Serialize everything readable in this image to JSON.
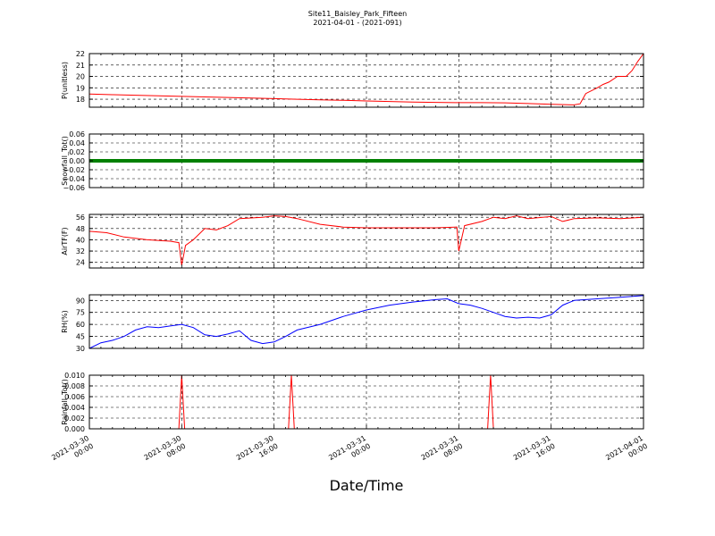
{
  "figure": {
    "title": "Site11_Baisley_Park_Fifteen",
    "subtitle": "2021-04-01 - (2021-091)",
    "xlabel": "Date/Time"
  },
  "chart_data": {
    "type": "line",
    "shared_x": {
      "range": [
        "2021-03-30 00:00",
        "2021-04-01 00:00"
      ],
      "tick_labels": [
        [
          "2021-03-30",
          "00:00"
        ],
        [
          "2021-03-30",
          "08:00"
        ],
        [
          "2021-03-30",
          "16:00"
        ],
        [
          "2021-03-31",
          "00:00"
        ],
        [
          "2021-03-31",
          "08:00"
        ],
        [
          "2021-03-31",
          "16:00"
        ],
        [
          "2021-04-01",
          "00:00"
        ]
      ]
    },
    "grid": true,
    "panels": [
      {
        "ylabel": "P(unitless)",
        "color": "#ff0000",
        "ylim": [
          17.3,
          22
        ],
        "yticks": [
          18,
          19,
          20,
          21,
          22
        ],
        "tick_labels": [
          "18",
          "19",
          "20",
          "21",
          "22"
        ],
        "points": [
          [
            "2021-03-30 00:00",
            18.45
          ],
          [
            "2021-03-30 02:00",
            18.4
          ],
          [
            "2021-03-30 04:00",
            18.35
          ],
          [
            "2021-03-30 06:00",
            18.3
          ],
          [
            "2021-03-30 08:00",
            18.25
          ],
          [
            "2021-03-30 10:00",
            18.2
          ],
          [
            "2021-03-30 12:00",
            18.15
          ],
          [
            "2021-03-30 14:00",
            18.1
          ],
          [
            "2021-03-30 16:00",
            18.05
          ],
          [
            "2021-03-30 18:00",
            18.0
          ],
          [
            "2021-03-30 20:00",
            17.95
          ],
          [
            "2021-03-30 22:00",
            17.9
          ],
          [
            "2021-03-31 00:00",
            17.85
          ],
          [
            "2021-03-31 02:00",
            17.8
          ],
          [
            "2021-03-31 04:00",
            17.75
          ],
          [
            "2021-03-31 06:00",
            17.72
          ],
          [
            "2021-03-31 08:00",
            17.7
          ],
          [
            "2021-03-31 10:00",
            17.7
          ],
          [
            "2021-03-31 12:00",
            17.68
          ],
          [
            "2021-03-31 14:00",
            17.62
          ],
          [
            "2021-03-31 16:00",
            17.55
          ],
          [
            "2021-03-31 18:00",
            17.5
          ],
          [
            "2021-03-31 18:30",
            17.6
          ],
          [
            "2021-03-31 19:00",
            18.5
          ],
          [
            "2021-03-31 20:00",
            19.0
          ],
          [
            "2021-03-31 20:30",
            19.3
          ],
          [
            "2021-03-31 21:00",
            19.5
          ],
          [
            "2021-03-31 21:45",
            20.0
          ],
          [
            "2021-03-31 22:30",
            20.0
          ],
          [
            "2021-03-31 23:00",
            20.5
          ],
          [
            "2021-03-31 23:30",
            21.3
          ],
          [
            "2021-04-01 00:00",
            22.0
          ]
        ]
      },
      {
        "ylabel": "Snowfall_Tot()",
        "color": "#008000",
        "ylim": [
          -0.06,
          0.06
        ],
        "yticks": [
          -0.06,
          -0.04,
          -0.02,
          0,
          0.02,
          0.04,
          0.06
        ],
        "tick_labels": [
          "−0.06",
          "−0.04",
          "−0.02",
          "0.00",
          "0.02",
          "0.04",
          "0.06"
        ],
        "points": [
          [
            "2021-03-30 00:00",
            0
          ],
          [
            "2021-04-01 00:00",
            0
          ]
        ]
      },
      {
        "ylabel": "AirTF(F)",
        "color": "#ff0000",
        "ylim": [
          20,
          58
        ],
        "yticks": [
          24,
          32,
          40,
          48,
          56
        ],
        "tick_labels": [
          "24",
          "32",
          "40",
          "48",
          "56"
        ],
        "points": [
          [
            "2021-03-30 00:00",
            46
          ],
          [
            "2021-03-30 01:30",
            45
          ],
          [
            "2021-03-30 03:00",
            42
          ],
          [
            "2021-03-30 05:00",
            40
          ],
          [
            "2021-03-30 07:00",
            39
          ],
          [
            "2021-03-30 07:45",
            38
          ],
          [
            "2021-03-30 08:00",
            22
          ],
          [
            "2021-03-30 08:20",
            36
          ],
          [
            "2021-03-30 09:00",
            40
          ],
          [
            "2021-03-30 10:00",
            48
          ],
          [
            "2021-03-30 11:00",
            47
          ],
          [
            "2021-03-30 12:00",
            50
          ],
          [
            "2021-03-30 13:00",
            55
          ],
          [
            "2021-03-30 15:00",
            56
          ],
          [
            "2021-03-30 16:00",
            57
          ],
          [
            "2021-03-30 17:00",
            56.5
          ],
          [
            "2021-03-30 18:00",
            55
          ],
          [
            "2021-03-30 20:00",
            51
          ],
          [
            "2021-03-30 22:00",
            49
          ],
          [
            "2021-03-31 00:00",
            48.5
          ],
          [
            "2021-03-31 02:00",
            48.5
          ],
          [
            "2021-03-31 04:00",
            48.5
          ],
          [
            "2021-03-31 06:00",
            48.5
          ],
          [
            "2021-03-31 07:50",
            49
          ],
          [
            "2021-03-31 08:00",
            32
          ],
          [
            "2021-03-31 08:30",
            50
          ],
          [
            "2021-03-31 10:00",
            53
          ],
          [
            "2021-03-31 11:00",
            56
          ],
          [
            "2021-03-31 12:00",
            55
          ],
          [
            "2021-03-31 13:00",
            57
          ],
          [
            "2021-03-31 14:00",
            55
          ],
          [
            "2021-03-31 16:00",
            56.5
          ],
          [
            "2021-03-31 17:00",
            53
          ],
          [
            "2021-03-31 18:00",
            55
          ],
          [
            "2021-03-31 20:00",
            55.5
          ],
          [
            "2021-03-31 22:00",
            55
          ],
          [
            "2021-04-01 00:00",
            56
          ]
        ]
      },
      {
        "ylabel": "RH(%)",
        "color": "#0000ff",
        "ylim": [
          30,
          97
        ],
        "yticks": [
          30,
          45,
          60,
          75,
          90
        ],
        "tick_labels": [
          "30",
          "45",
          "60",
          "75",
          "90"
        ],
        "points": [
          [
            "2021-03-30 00:00",
            30
          ],
          [
            "2021-03-30 01:00",
            37
          ],
          [
            "2021-03-30 02:00",
            40
          ],
          [
            "2021-03-30 03:00",
            45
          ],
          [
            "2021-03-30 04:00",
            53
          ],
          [
            "2021-03-30 05:00",
            57
          ],
          [
            "2021-03-30 06:00",
            56
          ],
          [
            "2021-03-30 07:00",
            58
          ],
          [
            "2021-03-30 08:00",
            60
          ],
          [
            "2021-03-30 09:00",
            56
          ],
          [
            "2021-03-30 10:00",
            47
          ],
          [
            "2021-03-30 11:00",
            45
          ],
          [
            "2021-03-30 12:00",
            48
          ],
          [
            "2021-03-30 13:00",
            52
          ],
          [
            "2021-03-30 14:00",
            40
          ],
          [
            "2021-03-30 15:00",
            36
          ],
          [
            "2021-03-30 16:00",
            38
          ],
          [
            "2021-03-30 17:00",
            45
          ],
          [
            "2021-03-30 18:00",
            53
          ],
          [
            "2021-03-30 20:00",
            60
          ],
          [
            "2021-03-30 22:00",
            70
          ],
          [
            "2021-03-31 00:00",
            78
          ],
          [
            "2021-03-31 02:00",
            84
          ],
          [
            "2021-03-31 04:00",
            88
          ],
          [
            "2021-03-31 06:00",
            91
          ],
          [
            "2021-03-31 07:00",
            92
          ],
          [
            "2021-03-31 08:00",
            86
          ],
          [
            "2021-03-31 09:00",
            84
          ],
          [
            "2021-03-31 10:00",
            80
          ],
          [
            "2021-03-31 11:00",
            75
          ],
          [
            "2021-03-31 12:00",
            70
          ],
          [
            "2021-03-31 13:00",
            68
          ],
          [
            "2021-03-31 14:00",
            69
          ],
          [
            "2021-03-31 15:00",
            68
          ],
          [
            "2021-03-31 16:00",
            72
          ],
          [
            "2021-03-31 17:00",
            84
          ],
          [
            "2021-03-31 18:00",
            90
          ],
          [
            "2021-03-31 20:00",
            92
          ],
          [
            "2021-03-31 22:00",
            94
          ],
          [
            "2021-04-01 00:00",
            96
          ]
        ]
      },
      {
        "ylabel": "Rainfall_Tot()",
        "color": "#ff0000",
        "ylim": [
          0,
          0.01
        ],
        "yticks": [
          0,
          0.002,
          0.004,
          0.006,
          0.008,
          0.01
        ],
        "tick_labels": [
          "0.000",
          "0.002",
          "0.004",
          "0.006",
          "0.008",
          "0.010"
        ],
        "points": [
          [
            "2021-03-30 00:00",
            0
          ],
          [
            "2021-03-30 07:45",
            0
          ],
          [
            "2021-03-30 08:00",
            0.01
          ],
          [
            "2021-03-30 08:15",
            0
          ],
          [
            "2021-03-30 17:15",
            0
          ],
          [
            "2021-03-30 17:30",
            0.01
          ],
          [
            "2021-03-30 17:45",
            0
          ],
          [
            "2021-03-31 10:30",
            0
          ],
          [
            "2021-03-31 10:45",
            0.01
          ],
          [
            "2021-03-31 11:00",
            0
          ],
          [
            "2021-04-01 00:00",
            0
          ]
        ]
      }
    ]
  }
}
